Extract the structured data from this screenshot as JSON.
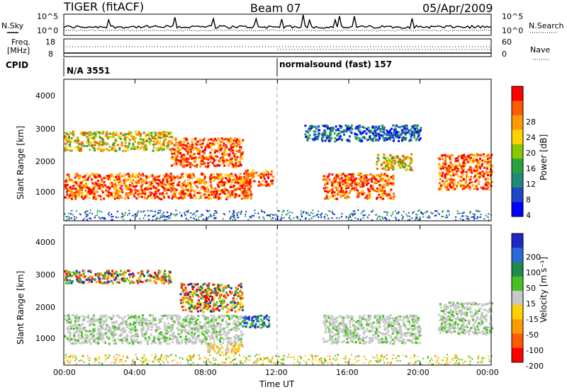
{
  "header": {
    "radar": "TIGER (fitACF)",
    "beam": "Beam 07",
    "date": "05/Apr/2009"
  },
  "noise_panel": {
    "left_label": "N.Sky",
    "right_label": "N.Search",
    "left_ticks": [
      "10^5",
      "10^0"
    ],
    "right_ticks": [
      "10^5",
      "10^0"
    ]
  },
  "freq_panel": {
    "left_label_line1": "Freq.",
    "left_label_line2": "[MHz]",
    "left_ticks": [
      "18",
      "8"
    ],
    "right_label": "Nave",
    "right_ticks": [
      "60",
      "0"
    ]
  },
  "cpid_panel": {
    "label": "CPID",
    "segments": [
      {
        "text": "N/A 3551",
        "start_hour": 0
      },
      {
        "text": "normalsound (fast) 157",
        "start_hour": 12
      }
    ]
  },
  "time_axis": {
    "label": "Time UT",
    "ticks": [
      "00:00",
      "04:00",
      "08:00",
      "12:00",
      "16:00",
      "20:00",
      "00:00"
    ]
  },
  "chart_data": [
    {
      "type": "heatmap",
      "name": "power",
      "ylabel": "Slant Range [km]",
      "xlabel": "Time UT",
      "xlim_hours": [
        0,
        24
      ],
      "ylim": [
        200,
        4600
      ],
      "yticks": [
        "4000",
        "3000",
        "2000",
        "1000"
      ],
      "colorbar": {
        "label": "Power [dB]",
        "ticks": [
          "28",
          "24",
          "20",
          "16",
          "12",
          "8",
          "4"
        ],
        "colors": [
          "#ff0000",
          "#ff5a00",
          "#ff9a00",
          "#ffd200",
          "#88c800",
          "#2ca040",
          "#1e8a78",
          "#1e46c8",
          "#0000ff"
        ]
      },
      "echo_regions": [
        {
          "t0": 0.0,
          "t1": 10.5,
          "r0": 900,
          "r1": 1700,
          "level": "high"
        },
        {
          "t0": 6.0,
          "t1": 10.0,
          "r0": 1900,
          "r1": 2800,
          "level": "high"
        },
        {
          "t0": 0.0,
          "t1": 6.0,
          "r0": 2400,
          "r1": 3000,
          "level": "medium"
        },
        {
          "t0": 10.0,
          "t1": 11.7,
          "r0": 1300,
          "r1": 1800,
          "level": "high"
        },
        {
          "t0": 14.5,
          "t1": 18.5,
          "r0": 900,
          "r1": 1700,
          "level": "high"
        },
        {
          "t0": 17.5,
          "t1": 19.5,
          "r0": 1800,
          "r1": 2300,
          "level": "medium"
        },
        {
          "t0": 21.0,
          "t1": 24.0,
          "r0": 1200,
          "r1": 2300,
          "level": "high"
        },
        {
          "t0": 13.5,
          "t1": 20.0,
          "r0": 2700,
          "r1": 3200,
          "level": "low"
        }
      ]
    },
    {
      "type": "heatmap",
      "name": "velocity",
      "ylabel": "Slant Range [km]",
      "xlabel": "Time UT",
      "xlim_hours": [
        0,
        24
      ],
      "ylim": [
        200,
        4600
      ],
      "yticks": [
        "4000",
        "3000",
        "2000",
        "1000"
      ],
      "colorbar": {
        "label": "Velocity [m s⁻¹]",
        "ticks": [
          "200",
          "100",
          "50",
          "15",
          "-15",
          "-50",
          "-100",
          "-200"
        ],
        "colors": [
          "#1e28c8",
          "#2a6ad8",
          "#1e8a50",
          "#48c020",
          "#c8c8c8",
          "#ffd200",
          "#ff9a00",
          "#ff5a00",
          "#ff0000"
        ]
      },
      "echo_regions": [
        {
          "t0": 0.0,
          "t1": 10.0,
          "r0": 900,
          "r1": 1800,
          "level": "ground"
        },
        {
          "t0": 6.5,
          "t1": 10.0,
          "r0": 1900,
          "r1": 2800,
          "level": "mixed"
        },
        {
          "t0": 10.0,
          "t1": 11.5,
          "r0": 1400,
          "r1": 1800,
          "level": "toward"
        },
        {
          "t0": 14.5,
          "t1": 20.0,
          "r0": 900,
          "r1": 1800,
          "level": "ground"
        },
        {
          "t0": 21.0,
          "t1": 24.0,
          "r0": 1200,
          "r1": 2200,
          "level": "ground"
        },
        {
          "t0": 0.0,
          "t1": 6.0,
          "r0": 2800,
          "r1": 3200,
          "level": "mixed"
        },
        {
          "t0": 8.0,
          "t1": 10.0,
          "r0": 600,
          "r1": 900,
          "level": "away"
        }
      ]
    }
  ]
}
